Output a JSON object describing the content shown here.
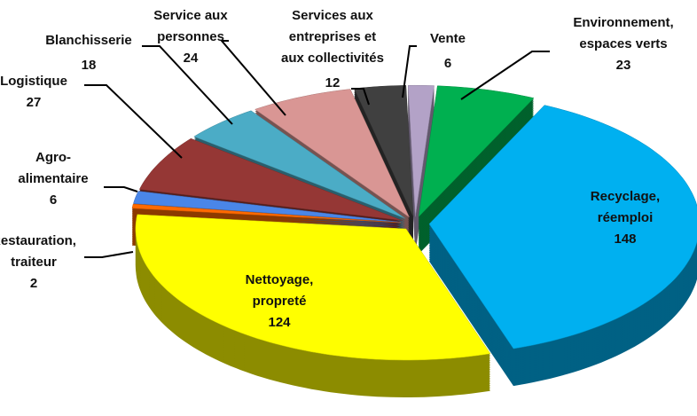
{
  "chart_data": {
    "type": "pie3d",
    "categories": [
      [
        "Environnement,",
        "espaces verts"
      ],
      [
        "Recyclage,",
        "réemploi"
      ],
      [
        "Nettoyage,",
        "propreté"
      ],
      [
        "Restauration,",
        "traiteur"
      ],
      [
        "Agro-",
        "alimentaire"
      ],
      [
        "Logistique"
      ],
      [
        "Blanchisserie"
      ],
      [
        "Service aux",
        "personnes"
      ],
      [
        "Services aux",
        "entreprises et",
        "aux collectivités"
      ],
      [
        "Vente"
      ]
    ],
    "values": [
      23,
      148,
      124,
      2,
      6,
      27,
      18,
      24,
      12,
      6
    ],
    "colors": [
      "#00b050",
      "#00b0f0",
      "#ffff00",
      "#ff6a00",
      "#4a86e8",
      "#953735",
      "#4bacc6",
      "#d99694",
      "#404040",
      "#b3a2c7"
    ]
  }
}
